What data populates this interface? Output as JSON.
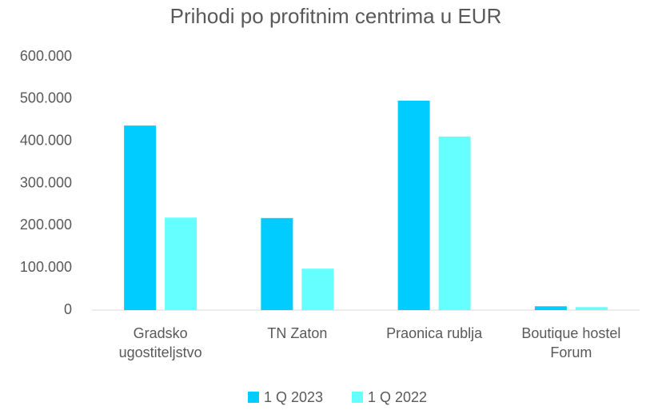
{
  "chart_data": {
    "type": "bar",
    "title": "Prihodi po profitnim centrima u EUR",
    "categories": [
      "Gradsko ugostiteljstvo",
      "TN Zaton",
      "Praonica rublja",
      "Boutique hostel Forum"
    ],
    "series": [
      {
        "name": "1 Q 2023",
        "color": "#00ccff",
        "values": [
          437000,
          218000,
          496000,
          9000
        ]
      },
      {
        "name": "1 Q 2022",
        "color": "#66ffff",
        "values": [
          219000,
          98000,
          411000,
          7000
        ]
      }
    ],
    "ylim": [
      0,
      600000
    ],
    "yticks": [
      0,
      {
        "value": 100000,
        "label": "100.000"
      },
      {
        "value": 200000,
        "label": "200.000"
      },
      {
        "value": 300000,
        "label": "300.000"
      },
      {
        "value": 400000,
        "label": "400.000"
      },
      {
        "value": 500000,
        "label": "500.000"
      },
      {
        "value": 600000,
        "label": "600.000"
      }
    ],
    "grid": false,
    "legend": "bottom"
  }
}
